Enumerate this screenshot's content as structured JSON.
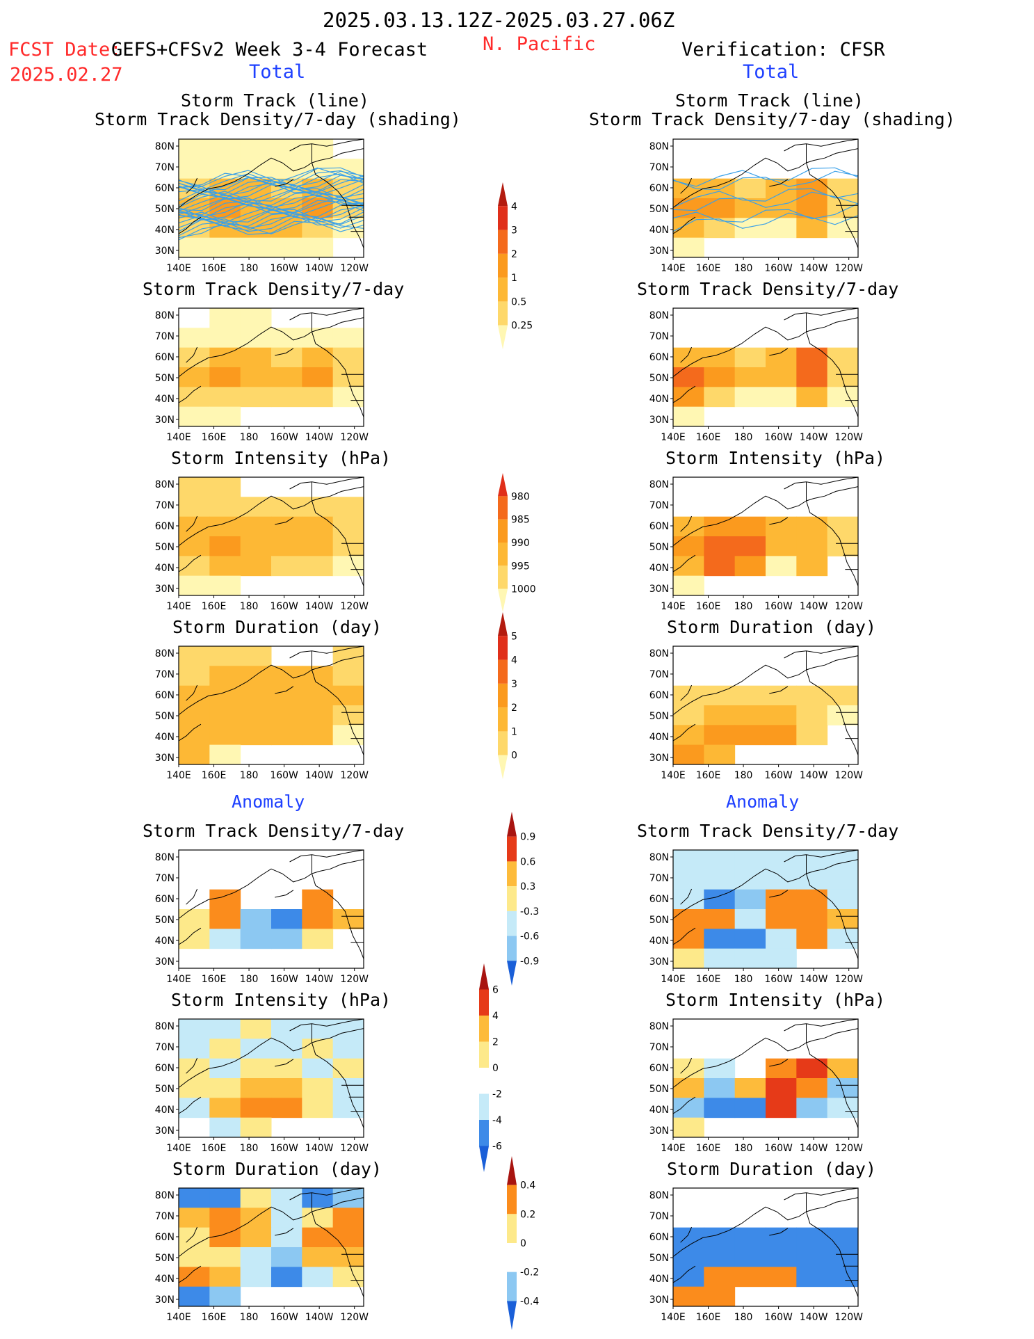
{
  "header": {
    "date_range": "2025.03.13.12Z-2025.03.27.06Z",
    "region": "N. Pacific",
    "fcst_label": "FCST Date:",
    "forecast_name": "GEFS+CFSv2 Week 3-4 Forecast",
    "fcst_date": "2025.02.27",
    "verification": "Verification: CFSR",
    "left_total": "Total",
    "right_total": "Total",
    "left_anomaly": "Anomaly",
    "right_anomaly": "Anomaly"
  },
  "panel_titles": {
    "track_line": "Storm Track (line)",
    "track_shading": "Storm Track Density/7-day (shading)",
    "density": "Storm Track Density/7-day",
    "intensity": "Storm Intensity (hPa)",
    "duration": "Storm Duration (day)"
  },
  "axes": {
    "lon_labels": [
      "140E",
      "160E",
      "180",
      "160W",
      "140W",
      "120W"
    ],
    "lat_labels": [
      "80N",
      "70N",
      "60N",
      "50N",
      "40N",
      "30N"
    ]
  },
  "colors": {
    "warm": [
      "#fff7b3",
      "#fed86a",
      "#fdb835",
      "#fb9a1e",
      "#f46a1c",
      "#e02f1a",
      "#b31b0f"
    ],
    "anom": [
      "#1a5fd8",
      "#3d8ae8",
      "#8cc8f2",
      "#c5eaf8",
      "#ffffff",
      "#fde98a",
      "#fdbb3b",
      "#fb8c1c",
      "#e63a18",
      "#a81410"
    ],
    "track_line": "#3aa0e8",
    "map_outline": "#000000"
  },
  "chart_data": [
    {
      "type": "heatmap",
      "panel": "forecast-total-track-line",
      "title": "Storm Track (line) / Storm Track Density/7-day (shading)",
      "legend": [
        "0.25",
        "0.5",
        "1",
        "2",
        "3",
        "4"
      ],
      "x": [
        "140E",
        "160E",
        "180",
        "160W",
        "140W",
        "120W"
      ],
      "y": [
        "80N",
        "70N",
        "60N",
        "50N",
        "40N",
        "30N"
      ],
      "values": [
        [
          1,
          1,
          1,
          1,
          1,
          0
        ],
        [
          1,
          1,
          1,
          1,
          1,
          1
        ],
        [
          2,
          3,
          3,
          2,
          3,
          2
        ],
        [
          3,
          4,
          3,
          3,
          4,
          2
        ],
        [
          2,
          3,
          3,
          3,
          2,
          1
        ],
        [
          1,
          1,
          1,
          1,
          1,
          0
        ]
      ]
    },
    {
      "type": "heatmap",
      "panel": "verification-total-track-line",
      "title": "Storm Track (line) / Storm Track Density/7-day (shading)",
      "legend": [
        "0.25",
        "0.5",
        "1",
        "2",
        "3",
        "4"
      ],
      "x": [
        "140E",
        "160E",
        "180",
        "160W",
        "140W",
        "120W"
      ],
      "y": [
        "80N",
        "70N",
        "60N",
        "50N",
        "40N",
        "30N"
      ],
      "values": [
        [
          0,
          0,
          0,
          0,
          0,
          0
        ],
        [
          0,
          0,
          0,
          0,
          0,
          0
        ],
        [
          3,
          3,
          2,
          3,
          4,
          2
        ],
        [
          4,
          4,
          3,
          3,
          4,
          2
        ],
        [
          3,
          2,
          1,
          1,
          3,
          1
        ],
        [
          1,
          0,
          0,
          0,
          0,
          0
        ]
      ]
    },
    {
      "type": "heatmap",
      "panel": "forecast-total-density",
      "title": "Storm Track Density/7-day",
      "legend": [
        "0.25",
        "0.5",
        "1",
        "2",
        "3",
        "4"
      ],
      "x": [
        "140E",
        "160E",
        "180",
        "160W",
        "140W",
        "120W"
      ],
      "y": [
        "80N",
        "70N",
        "60N",
        "50N",
        "40N",
        "30N"
      ],
      "values": [
        [
          0,
          1,
          1,
          0,
          0,
          0
        ],
        [
          1,
          1,
          1,
          1,
          1,
          1
        ],
        [
          2,
          3,
          3,
          2,
          3,
          2
        ],
        [
          3,
          4,
          3,
          3,
          4,
          2
        ],
        [
          2,
          2,
          2,
          2,
          2,
          1
        ],
        [
          1,
          1,
          0,
          0,
          0,
          0
        ]
      ]
    },
    {
      "type": "heatmap",
      "panel": "verification-total-density",
      "title": "Storm Track Density/7-day",
      "legend": [
        "0.25",
        "0.5",
        "1",
        "2",
        "3",
        "4"
      ],
      "x": [
        "140E",
        "160E",
        "180",
        "160W",
        "140W",
        "120W"
      ],
      "y": [
        "80N",
        "70N",
        "60N",
        "50N",
        "40N",
        "30N"
      ],
      "values": [
        [
          0,
          0,
          0,
          0,
          0,
          0
        ],
        [
          0,
          0,
          0,
          0,
          0,
          0
        ],
        [
          3,
          3,
          2,
          3,
          5,
          2
        ],
        [
          5,
          4,
          3,
          3,
          5,
          2
        ],
        [
          4,
          2,
          1,
          1,
          3,
          1
        ],
        [
          1,
          0,
          0,
          0,
          0,
          0
        ]
      ]
    },
    {
      "type": "heatmap",
      "panel": "forecast-total-intensity",
      "title": "Storm Intensity (hPa)",
      "legend": [
        "1000",
        "995",
        "990",
        "985",
        "980"
      ],
      "x": [
        "140E",
        "160E",
        "180",
        "160W",
        "140W",
        "120W"
      ],
      "y": [
        "80N",
        "70N",
        "60N",
        "50N",
        "40N",
        "30N"
      ],
      "values": [
        [
          2,
          2,
          0,
          0,
          0,
          0
        ],
        [
          2,
          2,
          2,
          2,
          2,
          2
        ],
        [
          3,
          3,
          3,
          3,
          3,
          2
        ],
        [
          3,
          4,
          3,
          3,
          3,
          2
        ],
        [
          2,
          3,
          3,
          2,
          2,
          1
        ],
        [
          1,
          1,
          0,
          0,
          0,
          0
        ]
      ]
    },
    {
      "type": "heatmap",
      "panel": "verification-total-intensity",
      "title": "Storm Intensity (hPa)",
      "legend": [
        "1000",
        "995",
        "990",
        "985",
        "980"
      ],
      "x": [
        "140E",
        "160E",
        "180",
        "160W",
        "140W",
        "120W"
      ],
      "y": [
        "80N",
        "70N",
        "60N",
        "50N",
        "40N",
        "30N"
      ],
      "values": [
        [
          0,
          0,
          0,
          0,
          0,
          0
        ],
        [
          0,
          0,
          0,
          0,
          0,
          0
        ],
        [
          3,
          4,
          4,
          3,
          3,
          2
        ],
        [
          4,
          5,
          5,
          3,
          3,
          2
        ],
        [
          3,
          5,
          4,
          1,
          3,
          0
        ],
        [
          1,
          0,
          0,
          0,
          0,
          0
        ]
      ]
    },
    {
      "type": "heatmap",
      "panel": "forecast-total-duration",
      "title": "Storm Duration (day)",
      "legend": [
        "0",
        "1",
        "2",
        "3",
        "4",
        "5"
      ],
      "x": [
        "140E",
        "160E",
        "180",
        "160W",
        "140W",
        "120W"
      ],
      "y": [
        "80N",
        "70N",
        "60N",
        "50N",
        "40N",
        "30N"
      ],
      "values": [
        [
          2,
          2,
          2,
          0,
          0,
          2
        ],
        [
          2,
          3,
          3,
          3,
          3,
          2
        ],
        [
          3,
          3,
          3,
          3,
          3,
          3
        ],
        [
          3,
          3,
          3,
          3,
          3,
          2
        ],
        [
          3,
          3,
          3,
          3,
          3,
          1
        ],
        [
          3,
          1,
          0,
          0,
          0,
          0
        ]
      ]
    },
    {
      "type": "heatmap",
      "panel": "verification-total-duration",
      "title": "Storm Duration (day)",
      "legend": [
        "0",
        "1",
        "2",
        "3",
        "4",
        "5"
      ],
      "x": [
        "140E",
        "160E",
        "180",
        "160W",
        "140W",
        "120W"
      ],
      "y": [
        "80N",
        "70N",
        "60N",
        "50N",
        "40N",
        "30N"
      ],
      "values": [
        [
          0,
          0,
          0,
          0,
          0,
          0
        ],
        [
          0,
          0,
          0,
          0,
          0,
          0
        ],
        [
          2,
          2,
          2,
          2,
          2,
          2
        ],
        [
          2,
          3,
          3,
          3,
          2,
          1
        ],
        [
          3,
          4,
          4,
          4,
          2,
          0
        ],
        [
          4,
          3,
          0,
          0,
          0,
          0
        ]
      ]
    },
    {
      "type": "heatmap",
      "panel": "forecast-anomaly-density",
      "title": "Storm Track Density/7-day",
      "legend": [
        "-0.9",
        "-0.6",
        "-0.3",
        "0.3",
        "0.6",
        "0.9"
      ],
      "x": [
        "140E",
        "160E",
        "180",
        "160W",
        "140W",
        "120W"
      ],
      "y": [
        "80N",
        "70N",
        "60N",
        "50N",
        "40N",
        "30N"
      ],
      "values": [
        [
          0,
          0,
          0,
          0,
          0,
          0
        ],
        [
          0,
          0,
          0,
          0,
          0,
          0
        ],
        [
          0,
          3,
          0,
          0,
          3,
          0
        ],
        [
          1,
          3,
          -2,
          -3,
          3,
          2
        ],
        [
          1,
          -1,
          -2,
          -2,
          1,
          0
        ],
        [
          0,
          0,
          0,
          0,
          0,
          0
        ]
      ]
    },
    {
      "type": "heatmap",
      "panel": "verification-anomaly-density",
      "title": "Storm Track Density/7-day",
      "legend": [
        "-0.9",
        "-0.6",
        "-0.3",
        "0.3",
        "0.6",
        "0.9"
      ],
      "x": [
        "140E",
        "160E",
        "180",
        "160W",
        "140W",
        "120W"
      ],
      "y": [
        "80N",
        "70N",
        "60N",
        "50N",
        "40N",
        "30N"
      ],
      "values": [
        [
          -1,
          -1,
          -1,
          -1,
          -1,
          -1
        ],
        [
          -1,
          -1,
          -1,
          -1,
          -1,
          -1
        ],
        [
          -1,
          -3,
          -2,
          3,
          3,
          -1
        ],
        [
          3,
          3,
          -1,
          3,
          3,
          2
        ],
        [
          3,
          -3,
          -3,
          -1,
          3,
          -1
        ],
        [
          1,
          -1,
          -1,
          -1,
          0,
          0
        ]
      ]
    },
    {
      "type": "heatmap",
      "panel": "forecast-anomaly-intensity",
      "title": "Storm Intensity (hPa)",
      "legend": [
        "-6",
        "-4",
        "-2",
        "0",
        "2",
        "4",
        "6"
      ],
      "x": [
        "140E",
        "160E",
        "180",
        "160W",
        "140W",
        "120W"
      ],
      "y": [
        "80N",
        "70N",
        "60N",
        "50N",
        "40N",
        "30N"
      ],
      "values": [
        [
          -1,
          -1,
          1,
          -1,
          -1,
          -1
        ],
        [
          -1,
          1,
          -1,
          -1,
          1,
          -1
        ],
        [
          1,
          -1,
          1,
          1,
          -1,
          1
        ],
        [
          1,
          1,
          2,
          2,
          1,
          -1
        ],
        [
          -1,
          2,
          3,
          3,
          1,
          -1
        ],
        [
          0,
          -1,
          1,
          0,
          0,
          0
        ]
      ]
    },
    {
      "type": "heatmap",
      "panel": "verification-anomaly-intensity",
      "title": "Storm Intensity (hPa)",
      "legend": [
        "-6",
        "-4",
        "-2",
        "0",
        "2",
        "4",
        "6"
      ],
      "x": [
        "140E",
        "160E",
        "180",
        "160W",
        "140W",
        "120W"
      ],
      "y": [
        "80N",
        "70N",
        "60N",
        "50N",
        "40N",
        "30N"
      ],
      "values": [
        [
          0,
          0,
          0,
          0,
          0,
          0
        ],
        [
          0,
          0,
          0,
          0,
          0,
          0
        ],
        [
          1,
          -1,
          0,
          3,
          4,
          2
        ],
        [
          2,
          -2,
          2,
          4,
          3,
          -2
        ],
        [
          -2,
          -3,
          -3,
          4,
          -2,
          -1
        ],
        [
          1,
          0,
          0,
          0,
          0,
          0
        ]
      ]
    },
    {
      "type": "heatmap",
      "panel": "forecast-anomaly-duration",
      "title": "Storm Duration (day)",
      "legend": [
        "-0.4",
        "-0.2",
        "0",
        "0.2",
        "0.4"
      ],
      "x": [
        "140E",
        "160E",
        "180",
        "160W",
        "140W",
        "120W"
      ],
      "y": [
        "80N",
        "70N",
        "60N",
        "50N",
        "40N",
        "30N"
      ],
      "values": [
        [
          -3,
          -3,
          1,
          -1,
          -3,
          -2
        ],
        [
          2,
          3,
          2,
          -1,
          1,
          3
        ],
        [
          1,
          3,
          2,
          -1,
          3,
          3
        ],
        [
          1,
          1,
          -1,
          -2,
          2,
          2
        ],
        [
          3,
          2,
          -1,
          -3,
          -1,
          1
        ],
        [
          -3,
          -2,
          0,
          0,
          0,
          0
        ]
      ]
    },
    {
      "type": "heatmap",
      "panel": "verification-anomaly-duration",
      "title": "Storm Duration (day)",
      "legend": [
        "-0.4",
        "-0.2",
        "0",
        "0.2",
        "0.4"
      ],
      "x": [
        "140E",
        "160E",
        "180",
        "160W",
        "140W",
        "120W"
      ],
      "y": [
        "80N",
        "70N",
        "60N",
        "50N",
        "40N",
        "30N"
      ],
      "values": [
        [
          0,
          0,
          0,
          0,
          0,
          0
        ],
        [
          0,
          0,
          0,
          0,
          0,
          0
        ],
        [
          -3,
          -3,
          -3,
          -3,
          -3,
          -3
        ],
        [
          -3,
          -3,
          -3,
          -3,
          -3,
          -3
        ],
        [
          -3,
          3,
          3,
          3,
          -3,
          -3
        ],
        [
          3,
          3,
          0,
          0,
          0,
          0
        ]
      ]
    }
  ],
  "colorbars": [
    {
      "name": "total-density-colorbar",
      "palette": "warm",
      "levels": [
        "0.25",
        "0.5",
        "1",
        "2",
        "3",
        "4"
      ]
    },
    {
      "name": "total-intensity-colorbar",
      "palette": "warm",
      "levels": [
        "1000",
        "995",
        "990",
        "985",
        "980"
      ]
    },
    {
      "name": "total-duration-colorbar",
      "palette": "warm",
      "levels": [
        "0",
        "1",
        "2",
        "3",
        "4",
        "5"
      ]
    },
    {
      "name": "anom-density-colorbar",
      "palette": "anom",
      "levels": [
        "-0.9",
        "-0.6",
        "-0.3",
        "0.3",
        "0.6",
        "0.9"
      ]
    },
    {
      "name": "anom-intensity-colorbar",
      "palette": "anom",
      "levels": [
        "-6",
        "-4",
        "-2",
        "0",
        "2",
        "4",
        "6"
      ]
    },
    {
      "name": "anom-duration-colorbar",
      "palette": "anom",
      "levels": [
        "-0.4",
        "-0.2",
        "0",
        "0.2",
        "0.4"
      ]
    }
  ]
}
